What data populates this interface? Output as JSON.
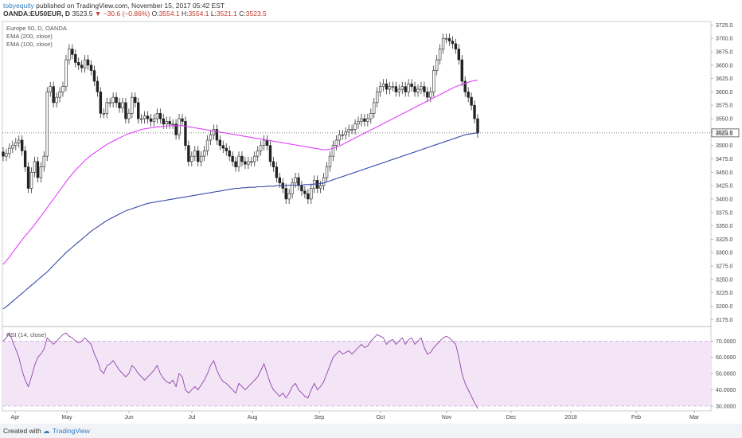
{
  "header": {
    "user": "tobyequity",
    "published": "published on TradingView.com, November 15, 2017 05:42 EST",
    "symbol": "OANDA:EU50EUR, D",
    "last": "3523.5",
    "change": "▼ −30.6 (−0.86%)",
    "o_label": "O:",
    "o_value": "3554.1",
    "h_label": "H:",
    "h_value": "3554.1",
    "l_label": "L:",
    "l_value": "3521.1",
    "c_label": "C:",
    "c_value": "3523.5"
  },
  "footer": {
    "created": "Created with",
    "brand": "TradingView"
  },
  "colors": {
    "up": "#26a69a",
    "down": "#c0392b",
    "ema200": "#3949ab",
    "ema100": "#e040fb",
    "rsi": "#8e44ad",
    "rsi_band": "#f3e5f5"
  },
  "chart_data": [
    {
      "type": "candlestick",
      "legend": [
        "Europe 50, D, OANDA",
        "EMA (200, close)",
        "EMA (100, close)"
      ],
      "ylim": [
        3165,
        3730
      ],
      "price_label": "3523.5",
      "price_line": 3523.5,
      "yticks": [
        3175,
        3200,
        3225,
        3250,
        3275,
        3300,
        3325,
        3350,
        3375,
        3400,
        3425,
        3450,
        3475,
        3500,
        3525,
        3550,
        3575,
        3600,
        3625,
        3650,
        3675,
        3700,
        3725
      ],
      "months": [
        "Apr",
        "May",
        "Jun",
        "Jul",
        "Aug",
        "Sep",
        "Oct",
        "Nov",
        "Dec",
        "2018",
        "Feb",
        "Mar"
      ],
      "closes": [
        3480,
        3485,
        3495,
        3500,
        3505,
        3510,
        3490,
        3460,
        3420,
        3450,
        3470,
        3440,
        3460,
        3480,
        3600,
        3610,
        3580,
        3590,
        3600,
        3610,
        3660,
        3680,
        3670,
        3655,
        3650,
        3645,
        3660,
        3650,
        3640,
        3620,
        3600,
        3560,
        3560,
        3580,
        3580,
        3590,
        3580,
        3570,
        3580,
        3550,
        3560,
        3590,
        3580,
        3550,
        3550,
        3555,
        3550,
        3545,
        3550,
        3560,
        3550,
        3540,
        3545,
        3540,
        3540,
        3520,
        3550,
        3545,
        3500,
        3470,
        3480,
        3490,
        3470,
        3480,
        3490,
        3510,
        3520,
        3530,
        3510,
        3500,
        3495,
        3490,
        3480,
        3470,
        3460,
        3480,
        3470,
        3465,
        3470,
        3470,
        3480,
        3490,
        3500,
        3510,
        3500,
        3470,
        3460,
        3440,
        3430,
        3420,
        3400,
        3410,
        3430,
        3440,
        3425,
        3415,
        3410,
        3400,
        3420,
        3435,
        3420,
        3425,
        3440,
        3460,
        3480,
        3500,
        3510,
        3520,
        3520,
        3525,
        3530,
        3530,
        3540,
        3545,
        3550,
        3545,
        3550,
        3560,
        3580,
        3600,
        3610,
        3615,
        3605,
        3610,
        3610,
        3600,
        3605,
        3610,
        3600,
        3615,
        3610,
        3600,
        3605,
        3610,
        3600,
        3590,
        3600,
        3640,
        3660,
        3680,
        3700,
        3700,
        3695,
        3690,
        3680,
        3660,
        3620,
        3600,
        3590,
        3575,
        3550,
        3523.5
      ],
      "ema200": [
        3195,
        3199,
        3204,
        3209,
        3214,
        3219,
        3224,
        3229,
        3234,
        3239,
        3244,
        3249,
        3254,
        3259,
        3264,
        3270,
        3276,
        3282,
        3288,
        3294,
        3300,
        3305,
        3310,
        3315,
        3320,
        3325,
        3330,
        3335,
        3340,
        3344,
        3348,
        3352,
        3356,
        3360,
        3363,
        3366,
        3369,
        3372,
        3375,
        3378,
        3380,
        3382,
        3384,
        3386,
        3388,
        3390,
        3392,
        3393,
        3394,
        3395,
        3396,
        3397,
        3398,
        3399,
        3400,
        3401,
        3402,
        3403,
        3404,
        3405,
        3406,
        3407,
        3408,
        3409,
        3410,
        3411,
        3412,
        3413,
        3414,
        3415,
        3416,
        3417,
        3418,
        3419,
        3420,
        3420,
        3421,
        3421,
        3422,
        3422,
        3422,
        3423,
        3423,
        3423,
        3424,
        3424,
        3424,
        3425,
        3425,
        3425,
        3425,
        3426,
        3426,
        3426,
        3426,
        3426,
        3427,
        3427,
        3427,
        3428,
        3428,
        3429,
        3430,
        3432,
        3434,
        3436,
        3438,
        3440,
        3442,
        3444,
        3446,
        3448,
        3450,
        3452,
        3454,
        3456,
        3458,
        3460,
        3462,
        3464,
        3466,
        3468,
        3470,
        3472,
        3474,
        3476,
        3478,
        3480,
        3482,
        3484,
        3486,
        3488,
        3490,
        3492,
        3494,
        3496,
        3498,
        3500,
        3502,
        3504,
        3506,
        3508,
        3510,
        3512,
        3514,
        3516,
        3518,
        3520,
        3521,
        3522,
        3523,
        3523
      ],
      "ema100": [
        3278,
        3285,
        3292,
        3300,
        3308,
        3316,
        3324,
        3331,
        3338,
        3345,
        3352,
        3360,
        3368,
        3376,
        3384,
        3392,
        3400,
        3408,
        3416,
        3424,
        3432,
        3440,
        3447,
        3454,
        3460,
        3466,
        3472,
        3477,
        3482,
        3486,
        3490,
        3494,
        3498,
        3502,
        3505,
        3508,
        3511,
        3514,
        3517,
        3520,
        3522,
        3524,
        3526,
        3528,
        3530,
        3531,
        3532,
        3533,
        3534,
        3535,
        3535,
        3536,
        3536,
        3537,
        3537,
        3537,
        3537,
        3537,
        3536,
        3535,
        3534,
        3533,
        3532,
        3531,
        3530,
        3529,
        3528,
        3527,
        3526,
        3525,
        3524,
        3523,
        3522,
        3521,
        3520,
        3519,
        3518,
        3517,
        3516,
        3515,
        3514,
        3513,
        3512,
        3511,
        3510,
        3509,
        3508,
        3507,
        3506,
        3505,
        3504,
        3503,
        3502,
        3501,
        3500,
        3499,
        3498,
        3497,
        3496,
        3495,
        3494,
        3493,
        3492,
        3492,
        3493,
        3495,
        3497,
        3499,
        3502,
        3505,
        3508,
        3511,
        3514,
        3517,
        3520,
        3523,
        3526,
        3529,
        3532,
        3535,
        3538,
        3541,
        3544,
        3547,
        3550,
        3553,
        3556,
        3559,
        3562,
        3565,
        3568,
        3571,
        3574,
        3577,
        3580,
        3583,
        3586,
        3589,
        3592,
        3595,
        3598,
        3601,
        3604,
        3607,
        3610,
        3612,
        3614,
        3616,
        3618,
        3620,
        3621,
        3622
      ]
    },
    {
      "type": "line",
      "legend": "RSI (14, close)",
      "ylim": [
        28,
        78
      ],
      "yticks": [
        30,
        40,
        50,
        60,
        70
      ],
      "band": [
        30,
        70
      ],
      "values": [
        70,
        72,
        75,
        70,
        65,
        60,
        52,
        46,
        42,
        48,
        55,
        60,
        62,
        65,
        72,
        70,
        68,
        70,
        72,
        74,
        75,
        73,
        72,
        70,
        69,
        70,
        72,
        70,
        68,
        62,
        58,
        52,
        50,
        55,
        56,
        58,
        55,
        52,
        50,
        48,
        50,
        55,
        53,
        50,
        48,
        46,
        48,
        50,
        52,
        55,
        50,
        47,
        45,
        44,
        46,
        42,
        50,
        48,
        40,
        38,
        40,
        42,
        40,
        43,
        46,
        50,
        55,
        58,
        52,
        48,
        45,
        44,
        42,
        40,
        38,
        44,
        42,
        40,
        42,
        44,
        46,
        48,
        52,
        56,
        50,
        44,
        40,
        38,
        36,
        38,
        35,
        38,
        42,
        44,
        40,
        38,
        36,
        35,
        40,
        44,
        40,
        42,
        45,
        50,
        55,
        60,
        62,
        64,
        62,
        63,
        64,
        62,
        64,
        66,
        68,
        66,
        67,
        70,
        72,
        74,
        73,
        72,
        68,
        70,
        71,
        68,
        70,
        72,
        68,
        71,
        72,
        68,
        70,
        72,
        66,
        62,
        63,
        66,
        68,
        70,
        72,
        73,
        72,
        70,
        68,
        60,
        50,
        44,
        40,
        36,
        32,
        28.5
      ]
    }
  ]
}
